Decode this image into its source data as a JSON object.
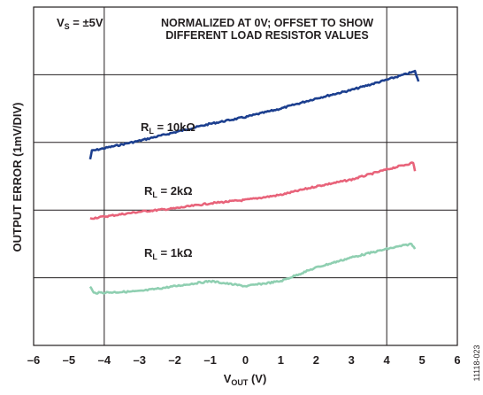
{
  "chart_data": {
    "type": "line",
    "figure_id": "11118-023",
    "xlabel": {
      "main": "V",
      "sub": "OUT",
      "unit": " (V)"
    },
    "ylabel": "OUTPUT ERROR (1mV/DIV)",
    "xlim": [
      -6,
      6
    ],
    "ylim": [
      0,
      10
    ],
    "x_ticks": [
      "–6",
      "–5",
      "–4",
      "–3",
      "–2",
      "–1",
      "0",
      "1",
      "2",
      "3",
      "4",
      "5",
      "6"
    ],
    "x_tick_values": [
      -6,
      -5,
      -4,
      -3,
      -2,
      -1,
      0,
      1,
      2,
      3,
      4,
      5,
      6
    ],
    "y_gridlines": [
      0,
      2,
      4,
      6,
      8,
      10
    ],
    "grid": true,
    "annotations": {
      "supply": {
        "main": "V",
        "sub": "S",
        "rest": " = ±5V"
      },
      "note_line1": "NORMALIZED AT 0V; OFFSET TO SHOW",
      "note_line2": "DIFFERENT LOAD RESISTOR VALUES"
    },
    "series": [
      {
        "name_main": "R",
        "name_sub": "L",
        "name_rest": " = 10kΩ",
        "color": "#1c3f8f",
        "points": [
          [
            -4.4,
            5.5
          ],
          [
            -4.35,
            5.75
          ],
          [
            -3,
            6.05
          ],
          [
            -1,
            6.55
          ],
          [
            0,
            6.75
          ],
          [
            1,
            7.0
          ],
          [
            2,
            7.3
          ],
          [
            3,
            7.55
          ],
          [
            4,
            7.85
          ],
          [
            4.8,
            8.1
          ],
          [
            4.9,
            7.8
          ]
        ]
      },
      {
        "name_main": "R",
        "name_sub": "L",
        "name_rest": " = 2kΩ",
        "color": "#e8637a",
        "points": [
          [
            -4.4,
            3.75
          ],
          [
            -3,
            3.95
          ],
          [
            -2,
            4.05
          ],
          [
            -1,
            4.2
          ],
          [
            0,
            4.3
          ],
          [
            1,
            4.45
          ],
          [
            2,
            4.7
          ],
          [
            3,
            4.9
          ],
          [
            4,
            5.2
          ],
          [
            4.75,
            5.4
          ],
          [
            4.8,
            5.15
          ]
        ]
      },
      {
        "name_main": "R",
        "name_sub": "L",
        "name_rest": " = 1kΩ",
        "color": "#8fcfb1",
        "points": [
          [
            -4.4,
            1.75
          ],
          [
            -4.3,
            1.55
          ],
          [
            -3,
            1.6
          ],
          [
            -2,
            1.75
          ],
          [
            -1,
            1.9
          ],
          [
            0,
            1.75
          ],
          [
            1,
            1.9
          ],
          [
            2,
            2.3
          ],
          [
            3,
            2.6
          ],
          [
            4,
            2.85
          ],
          [
            4.7,
            3.0
          ],
          [
            4.8,
            2.85
          ]
        ]
      }
    ]
  }
}
